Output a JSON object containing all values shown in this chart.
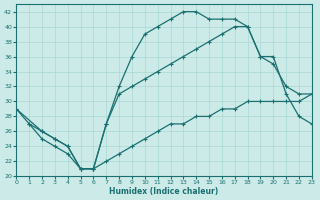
{
  "xlabel": "Humidex (Indice chaleur)",
  "xlim": [
    0,
    23
  ],
  "ylim": [
    20,
    43
  ],
  "xticks": [
    0,
    1,
    2,
    3,
    4,
    5,
    6,
    7,
    8,
    9,
    10,
    11,
    12,
    13,
    14,
    15,
    16,
    17,
    18,
    19,
    20,
    21,
    22,
    23
  ],
  "yticks": [
    20,
    22,
    24,
    26,
    28,
    30,
    32,
    34,
    36,
    38,
    40,
    42
  ],
  "bg_color": "#cceae8",
  "grid_color": "#aad8d5",
  "line_color": "#1a7070",
  "line1_x": [
    0,
    1,
    2,
    3,
    4,
    5,
    6,
    7,
    8,
    9,
    10,
    11,
    12,
    13,
    14,
    15,
    16,
    17,
    18,
    19,
    20,
    21,
    22,
    23
  ],
  "line1_y": [
    29,
    27,
    26,
    25,
    24,
    21,
    21,
    27,
    32,
    36,
    39,
    40,
    41,
    42,
    42,
    41,
    41,
    41,
    40,
    36,
    35,
    32,
    31,
    31
  ],
  "line2_x": [
    0,
    2,
    3,
    4,
    5,
    6,
    7,
    8,
    9,
    10,
    11,
    12,
    13,
    14,
    15,
    16,
    17,
    18,
    19,
    20,
    21,
    22,
    23
  ],
  "line2_y": [
    29,
    26,
    25,
    24,
    21,
    21,
    27,
    31,
    32,
    33,
    34,
    35,
    36,
    37,
    38,
    39,
    40,
    40,
    36,
    36,
    31,
    28,
    27
  ],
  "line3_x": [
    1,
    2,
    3,
    4,
    5,
    6,
    7,
    8,
    9,
    10,
    11,
    12,
    13,
    14,
    15,
    16,
    17,
    18,
    19,
    20,
    21,
    22,
    23
  ],
  "line3_y": [
    27,
    25,
    24,
    23,
    21,
    21,
    22,
    23,
    24,
    25,
    26,
    27,
    27,
    28,
    28,
    29,
    29,
    30,
    30,
    30,
    30,
    30,
    31
  ]
}
